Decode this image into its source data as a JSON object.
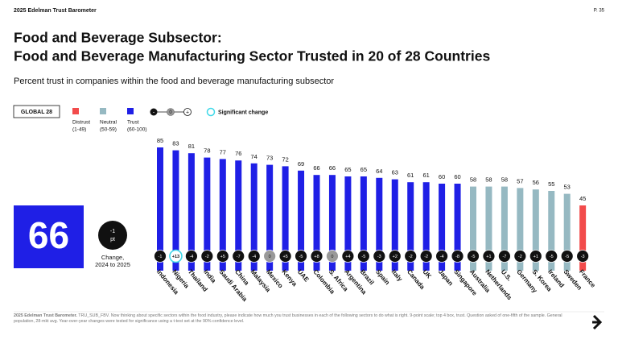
{
  "header": {
    "brand": "2025 Edelman Trust Barometer",
    "page": "P. 35"
  },
  "title_lines": [
    "Food and Beverage Subsector:",
    "Food and Beverage Manufacturing Sector Trusted in 20 of 28 Countries"
  ],
  "subtitle": "Percent trust in companies within the food and beverage manufacturing subsector",
  "legend": {
    "global": "GLOBAL 28",
    "items": [
      {
        "label": "Distrust",
        "range": "(1-49)",
        "color": "#f24b4b"
      },
      {
        "label": "Neutral",
        "range": "(50-59)",
        "color": "#96b9c2"
      },
      {
        "label": "Trust",
        "range": "(60-100)",
        "color": "#1f1fe6"
      }
    ],
    "change_symbols": [
      "-",
      "0",
      "+"
    ],
    "significant": "Significant change"
  },
  "global": {
    "value": 66,
    "change": -1,
    "unit": "pt",
    "caption_lines": [
      "Change,",
      "2024 to 2025"
    ]
  },
  "chart_data": {
    "type": "bar",
    "categories": [
      "Indonesia",
      "Nigeria",
      "Thailand",
      "India",
      "Saudi Arabia",
      "China",
      "Malaysia",
      "Mexico",
      "Kenya",
      "UAE",
      "Colombia",
      "S. Africa",
      "Argentina",
      "Brazil",
      "Spain",
      "Italy",
      "Canada",
      "UK",
      "Japan",
      "Singapore",
      "Australia",
      "Netherlands",
      "U.S.",
      "Germany",
      "S. Korea",
      "Ireland",
      "Sweden",
      "France"
    ],
    "values": [
      85,
      83,
      81,
      78,
      77,
      76,
      74,
      73,
      72,
      69,
      66,
      66,
      65,
      65,
      64,
      63,
      61,
      61,
      60,
      60,
      58,
      58,
      58,
      57,
      56,
      55,
      53,
      45
    ],
    "colors": [
      "#1f1fe6",
      "#1f1fe6",
      "#1f1fe6",
      "#1f1fe6",
      "#1f1fe6",
      "#1f1fe6",
      "#1f1fe6",
      "#1f1fe6",
      "#1f1fe6",
      "#1f1fe6",
      "#1f1fe6",
      "#1f1fe6",
      "#1f1fe6",
      "#1f1fe6",
      "#1f1fe6",
      "#1f1fe6",
      "#1f1fe6",
      "#1f1fe6",
      "#1f1fe6",
      "#1f1fe6",
      "#96b9c2",
      "#96b9c2",
      "#96b9c2",
      "#96b9c2",
      "#96b9c2",
      "#96b9c2",
      "#96b9c2",
      "#f24b4b"
    ],
    "changes": {
      "values": [
        -1,
        13,
        -4,
        -2,
        5,
        -7,
        -4,
        0,
        5,
        -5,
        8,
        0,
        4,
        -5,
        -3,
        2,
        -2,
        -2,
        -4,
        -8,
        -5,
        1,
        -7,
        -2,
        1,
        -5,
        -5,
        -3
      ],
      "value_labels": [
        "-1",
        "+13",
        "-4",
        "-2",
        "+5",
        "-7",
        "-4",
        "0",
        "+5",
        "-5",
        "+8",
        "0",
        "+4",
        "-5",
        "-3",
        "+2",
        "-2",
        "-2",
        "-4",
        "-8",
        "-5",
        "+1",
        "-7",
        "-2",
        "+1",
        "-5",
        "-5",
        "-3"
      ],
      "significant": [
        false,
        true,
        false,
        false,
        false,
        false,
        false,
        false,
        false,
        false,
        false,
        false,
        false,
        false,
        false,
        false,
        false,
        false,
        false,
        false,
        false,
        false,
        false,
        false,
        false,
        false,
        false,
        false
      ]
    }
  },
  "footnote": {
    "source": "2025 Edelman Trust Barometer.",
    "text": "TRU_SUB_FBV. Now thinking about specific sectors within the food industry, please indicate how much you trust businesses in each of the following sectors to do what is right. 9-point scale; top 4 box, trust. Question asked of one-fifth of the sample. General population, 28-mkt avg. Year-over-year changes were tested for significance using a t-test set at the 90% confidence level."
  }
}
